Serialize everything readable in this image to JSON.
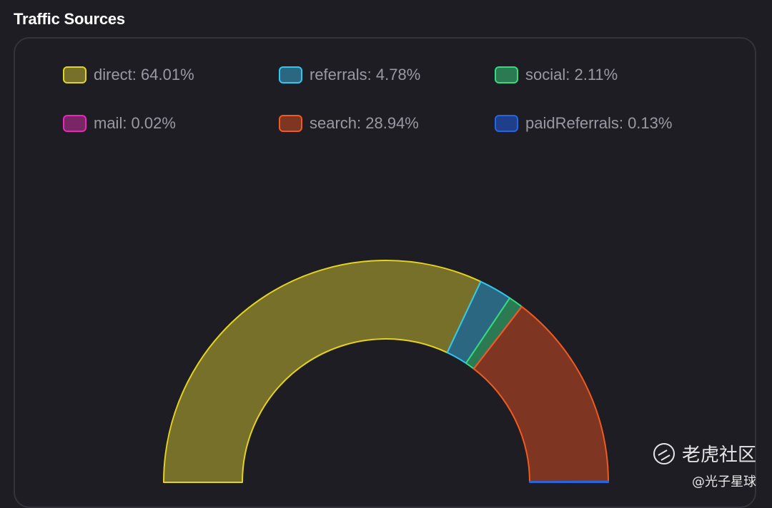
{
  "header": {
    "title": "Traffic Sources"
  },
  "watermark": {
    "brand": "老虎社区",
    "handle": "@光子星球"
  },
  "chart_data": {
    "type": "pie",
    "variant": "half-donut",
    "legend_placement": "top",
    "series": [
      {
        "name": "direct",
        "value": 64.01,
        "label": "direct: 64.01%",
        "fill": "#77702a",
        "stroke": "#e4d321"
      },
      {
        "name": "referrals",
        "value": 4.78,
        "label": "referrals: 4.78%",
        "fill": "#2b6780",
        "stroke": "#2ec7ee"
      },
      {
        "name": "social",
        "value": 2.11,
        "label": "social: 2.11%",
        "fill": "#2c7a52",
        "stroke": "#35d97f"
      },
      {
        "name": "mail",
        "value": 0.02,
        "label": "mail: 0.02%",
        "fill": "#7a2566",
        "stroke": "#e629b8"
      },
      {
        "name": "search",
        "value": 28.94,
        "label": "search: 28.94%",
        "fill": "#7e3622",
        "stroke": "#f15a1e"
      },
      {
        "name": "paidReferrals",
        "value": 0.13,
        "label": "paidReferrals: 0.13%",
        "fill": "#1f3f8a",
        "stroke": "#2466e0"
      }
    ]
  }
}
